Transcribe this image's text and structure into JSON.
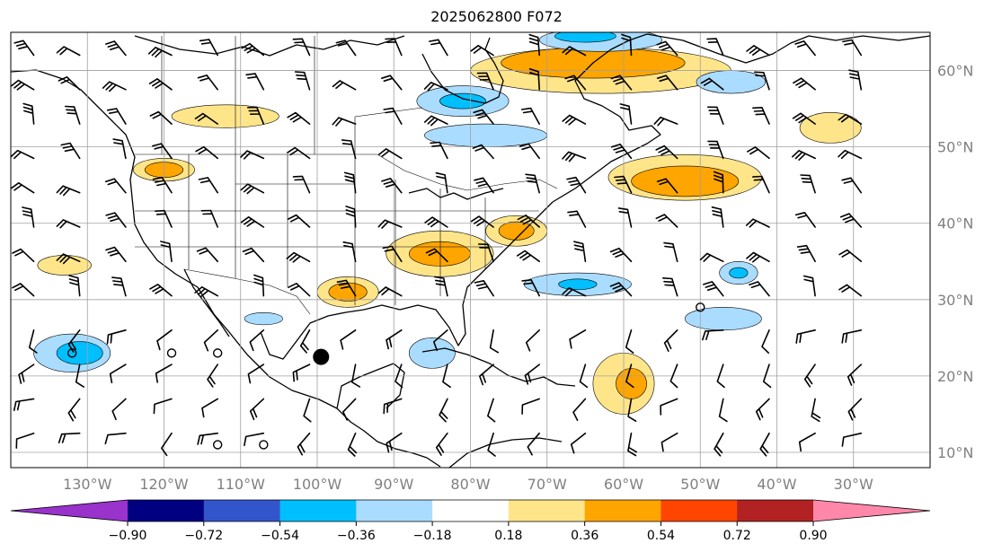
{
  "title": "2025062800 F072",
  "map": {
    "lon_range": [
      -140,
      -20
    ],
    "lat_range": [
      8,
      65
    ],
    "lon_ticks": [
      {
        "value": -130,
        "label": "130°W"
      },
      {
        "value": -120,
        "label": "120°W"
      },
      {
        "value": -110,
        "label": "110°W"
      },
      {
        "value": -100,
        "label": "100°W"
      },
      {
        "value": -90,
        "label": "90°W"
      },
      {
        "value": -80,
        "label": "80°W"
      },
      {
        "value": -70,
        "label": "70°W"
      },
      {
        "value": -60,
        "label": "60°W"
      },
      {
        "value": -50,
        "label": "50°W"
      },
      {
        "value": -40,
        "label": "40°W"
      },
      {
        "value": -30,
        "label": "30°W"
      }
    ],
    "lat_ticks": [
      {
        "value": 60,
        "label": "60°N"
      },
      {
        "value": 50,
        "label": "50°N"
      },
      {
        "value": 40,
        "label": "40°N"
      },
      {
        "value": 30,
        "label": "30°N"
      },
      {
        "value": 20,
        "label": "20°N"
      },
      {
        "value": 10,
        "label": "10°N"
      }
    ],
    "grid": true,
    "tick_label_color": "#808080"
  },
  "colorbar": {
    "orientation": "horizontal",
    "extend": "both",
    "labels": [
      "−0.90",
      "−0.72",
      "−0.54",
      "−0.36",
      "−0.18",
      "0.18",
      "0.36",
      "0.54",
      "0.72",
      "0.90"
    ],
    "colors": [
      "#9933cc",
      "#000080",
      "#3355cc",
      "#00bfff",
      "#aadcff",
      "#ffffff",
      "#ffe58a",
      "#ffa500",
      "#ff4500",
      "#b22222",
      "#ff88aa"
    ]
  },
  "contour_fields": [
    {
      "value_class": 0.36,
      "color": "#ffe58a",
      "lon": -96,
      "lat": 31,
      "rx": 4,
      "ry": 2
    },
    {
      "value_class": 0.54,
      "color": "#ffa500",
      "lon": -96,
      "lat": 31,
      "rx": 2.5,
      "ry": 1.2
    },
    {
      "value_class": 0.36,
      "color": "#ffe58a",
      "lon": -84,
      "lat": 36,
      "rx": 7,
      "ry": 3
    },
    {
      "value_class": 0.54,
      "color": "#ffa500",
      "lon": -84,
      "lat": 36,
      "rx": 4,
      "ry": 1.6
    },
    {
      "value_class": 0.36,
      "color": "#ffe58a",
      "lon": -74,
      "lat": 39,
      "rx": 4,
      "ry": 2
    },
    {
      "value_class": 0.54,
      "color": "#ffa500",
      "lon": -74,
      "lat": 39,
      "rx": 2.3,
      "ry": 1.2
    },
    {
      "value_class": 0.36,
      "color": "#ffe58a",
      "lon": -63,
      "lat": 60,
      "rx": 17,
      "ry": 3
    },
    {
      "value_class": 0.54,
      "color": "#ffa500",
      "lon": -64,
      "lat": 61,
      "rx": 12,
      "ry": 2
    },
    {
      "value_class": 0.36,
      "color": "#ffe58a",
      "lon": -52,
      "lat": 46,
      "rx": 10,
      "ry": 3
    },
    {
      "value_class": 0.54,
      "color": "#ffa500",
      "lon": -52,
      "lat": 45.5,
      "rx": 7,
      "ry": 2
    },
    {
      "value_class": 0.36,
      "color": "#ffe58a",
      "lon": -120,
      "lat": 47,
      "rx": 4,
      "ry": 1.5
    },
    {
      "value_class": 0.54,
      "color": "#ffa500",
      "lon": -120,
      "lat": 47,
      "rx": 2.5,
      "ry": 1
    },
    {
      "value_class": 0.36,
      "color": "#ffe58a",
      "lon": -60,
      "lat": 19,
      "rx": 4,
      "ry": 4
    },
    {
      "value_class": 0.54,
      "color": "#ffa500",
      "lon": -59,
      "lat": 19,
      "rx": 2,
      "ry": 2
    },
    {
      "value_class": 0.36,
      "color": "#ffe58a",
      "lon": -112,
      "lat": 54,
      "rx": 7,
      "ry": 1.5
    },
    {
      "value_class": 0.36,
      "color": "#ffe58a",
      "lon": -33,
      "lat": 52.5,
      "rx": 4,
      "ry": 2
    },
    {
      "value_class": 0.36,
      "color": "#ffe58a",
      "lon": -133,
      "lat": 34.5,
      "rx": 3.5,
      "ry": 1.3
    },
    {
      "value_class": -0.36,
      "color": "#aadcff",
      "lon": -81,
      "lat": 56,
      "rx": 6,
      "ry": 2
    },
    {
      "value_class": -0.54,
      "color": "#00bfff",
      "lon": -81,
      "lat": 56,
      "rx": 3,
      "ry": 1
    },
    {
      "value_class": -0.36,
      "color": "#aadcff",
      "lon": -78,
      "lat": 51.5,
      "rx": 8,
      "ry": 1.5
    },
    {
      "value_class": -0.36,
      "color": "#aadcff",
      "lon": -63,
      "lat": 64,
      "rx": 8,
      "ry": 1.5
    },
    {
      "value_class": -0.54,
      "color": "#00bfff",
      "lon": -65,
      "lat": 64.5,
      "rx": 4,
      "ry": 0.8
    },
    {
      "value_class": -0.36,
      "color": "#aadcff",
      "lon": -132,
      "lat": 23,
      "rx": 5,
      "ry": 2.5
    },
    {
      "value_class": -0.54,
      "color": "#00bfff",
      "lon": -131,
      "lat": 23,
      "rx": 3,
      "ry": 1.5
    },
    {
      "value_class": -0.36,
      "color": "#aadcff",
      "lon": -66,
      "lat": 32,
      "rx": 7,
      "ry": 1.5
    },
    {
      "value_class": -0.54,
      "color": "#00bfff",
      "lon": -66,
      "lat": 32,
      "rx": 2.5,
      "ry": 0.7
    },
    {
      "value_class": -0.36,
      "color": "#aadcff",
      "lon": -47,
      "lat": 27.5,
      "rx": 5,
      "ry": 1.5
    },
    {
      "value_class": -0.36,
      "color": "#aadcff",
      "lon": -45,
      "lat": 33.5,
      "rx": 2.5,
      "ry": 1.5
    },
    {
      "value_class": -0.54,
      "color": "#00bfff",
      "lon": -45,
      "lat": 33.5,
      "rx": 1.2,
      "ry": 0.7
    },
    {
      "value_class": -0.36,
      "color": "#aadcff",
      "lon": -46,
      "lat": 58.5,
      "rx": 4.5,
      "ry": 1.5
    },
    {
      "value_class": -0.36,
      "color": "#aadcff",
      "lon": -85,
      "lat": 23,
      "rx": 3,
      "ry": 2
    },
    {
      "value_class": -0.36,
      "color": "#aadcff",
      "lon": -107,
      "lat": 27.5,
      "rx": 2.5,
      "ry": 0.8
    }
  ],
  "markers": [
    {
      "kind": "storm",
      "lon": -99.5,
      "lat": 22.5
    },
    {
      "kind": "calm",
      "lon": -132,
      "lat": 23
    },
    {
      "kind": "calm",
      "lon": -119,
      "lat": 23
    },
    {
      "kind": "calm",
      "lon": -113,
      "lat": 23
    },
    {
      "kind": "calm",
      "lon": -113,
      "lat": 11
    },
    {
      "kind": "calm",
      "lon": -107,
      "lat": 11
    },
    {
      "kind": "calm",
      "lon": -50,
      "lat": 29
    }
  ]
}
